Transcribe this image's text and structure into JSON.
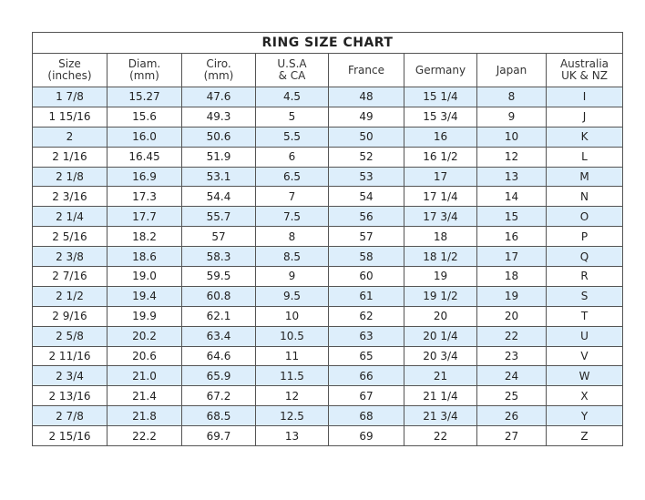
{
  "title": "RING SIZE CHART",
  "headers": [
    [
      "Size",
      "(inches)"
    ],
    [
      "Diam.",
      "(mm)"
    ],
    [
      "Ciro.",
      "(mm)"
    ],
    [
      "U.S.A",
      "& CA"
    ],
    [
      "France",
      ""
    ],
    [
      "Germany",
      ""
    ],
    [
      "Japan",
      ""
    ],
    [
      "Australia",
      "UK & NZ"
    ]
  ],
  "row_shade_color": "#ddeefb",
  "rows": [
    [
      "1 7/8",
      "15.27",
      "47.6",
      "4.5",
      "48",
      "15 1/4",
      "8",
      "I"
    ],
    [
      "1 15/16",
      "15.6",
      "49.3",
      "5",
      "49",
      "15 3/4",
      "9",
      "J"
    ],
    [
      "2",
      "16.0",
      "50.6",
      "5.5",
      "50",
      "16",
      "10",
      "K"
    ],
    [
      "2 1/16",
      "16.45",
      "51.9",
      "6",
      "52",
      "16 1/2",
      "12",
      "L"
    ],
    [
      "2 1/8",
      "16.9",
      "53.1",
      "6.5",
      "53",
      "17",
      "13",
      "M"
    ],
    [
      "2 3/16",
      "17.3",
      "54.4",
      "7",
      "54",
      "17 1/4",
      "14",
      "N"
    ],
    [
      "2 1/4",
      "17.7",
      "55.7",
      "7.5",
      "56",
      "17 3/4",
      "15",
      "O"
    ],
    [
      "2 5/16",
      "18.2",
      "57",
      "8",
      "57",
      "18",
      "16",
      "P"
    ],
    [
      "2 3/8",
      "18.6",
      "58.3",
      "8.5",
      "58",
      "18 1/2",
      "17",
      "Q"
    ],
    [
      "2 7/16",
      "19.0",
      "59.5",
      "9",
      "60",
      "19",
      "18",
      "R"
    ],
    [
      "2 1/2",
      "19.4",
      "60.8",
      "9.5",
      "61",
      "19 1/2",
      "19",
      "S"
    ],
    [
      "2 9/16",
      "19.9",
      "62.1",
      "10",
      "62",
      "20",
      "20",
      "T"
    ],
    [
      "2 5/8",
      "20.2",
      "63.4",
      "10.5",
      "63",
      "20 1/4",
      "22",
      "U"
    ],
    [
      "2 11/16",
      "20.6",
      "64.6",
      "11",
      "65",
      "20 3/4",
      "23",
      "V"
    ],
    [
      "2 3/4",
      "21.0",
      "65.9",
      "11.5",
      "66",
      "21",
      "24",
      "W"
    ],
    [
      "2 13/16",
      "21.4",
      "67.2",
      "12",
      "67",
      "21 1/4",
      "25",
      "X"
    ],
    [
      "2 7/8",
      "21.8",
      "68.5",
      "12.5",
      "68",
      "21 3/4",
      "26",
      "Y"
    ],
    [
      "2 15/16",
      "22.2",
      "69.7",
      "13",
      "69",
      "22",
      "27",
      "Z"
    ]
  ]
}
